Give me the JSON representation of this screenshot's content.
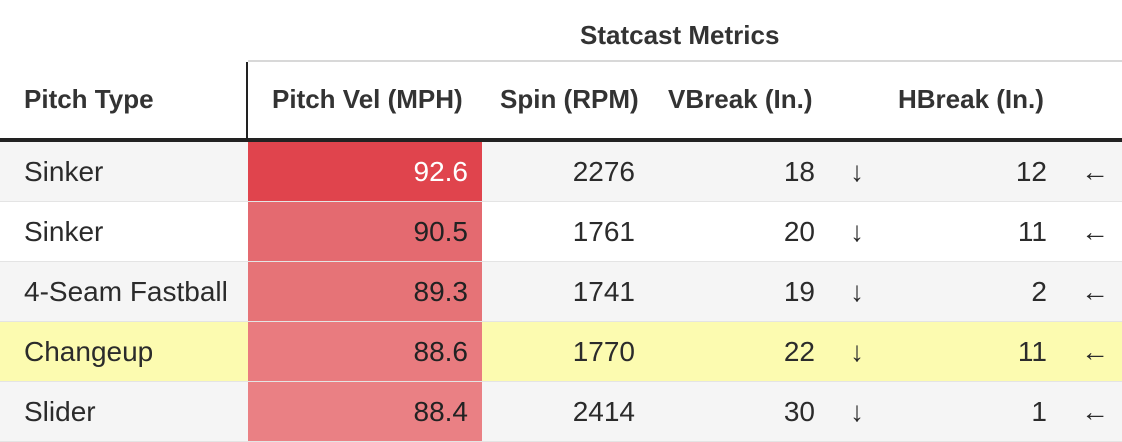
{
  "table": {
    "spanner": "Statcast Metrics",
    "columns": [
      "Pitch Type",
      "Pitch Vel (MPH)",
      "Spin (RPM)",
      "VBreak (In.)",
      "HBreak (In.)"
    ],
    "rows": [
      {
        "pitch_type": "Sinker",
        "velocity": "92.6",
        "spin": "2276",
        "vbreak": "18",
        "vbreak_arrow": "↓",
        "hbreak": "12",
        "hbreak_arrow": "←"
      },
      {
        "pitch_type": "Sinker",
        "velocity": "90.5",
        "spin": "1761",
        "vbreak": "20",
        "vbreak_arrow": "↓",
        "hbreak": "11",
        "hbreak_arrow": "←"
      },
      {
        "pitch_type": "4-Seam Fastball",
        "velocity": "89.3",
        "spin": "1741",
        "vbreak": "19",
        "vbreak_arrow": "↓",
        "hbreak": "2",
        "hbreak_arrow": "←"
      },
      {
        "pitch_type": "Changeup",
        "velocity": "88.6",
        "spin": "1770",
        "vbreak": "22",
        "vbreak_arrow": "↓",
        "hbreak": "11",
        "hbreak_arrow": "←"
      },
      {
        "pitch_type": "Slider",
        "velocity": "88.4",
        "spin": "2414",
        "vbreak": "30",
        "vbreak_arrow": "↓",
        "hbreak": "1",
        "hbreak_arrow": "←"
      }
    ]
  },
  "colors": {
    "row_highlight": "#fcfbb0",
    "row_stripe": "#f5f5f5",
    "row_plain": "#ffffff",
    "velocity_fills": [
      "#e0444d",
      "#e46a70",
      "#e67377",
      "#e97b7f",
      "#ea8084"
    ],
    "velocity_text": [
      "#ffffff",
      "#222222",
      "#222222",
      "#222222",
      "#222222"
    ]
  },
  "chart_data": {
    "type": "table",
    "title": "",
    "spanner": "Statcast Metrics",
    "columns": [
      "Pitch Type",
      "Pitch Vel (MPH)",
      "Spin (RPM)",
      "VBreak (In.)",
      "HBreak (In.)"
    ],
    "x": [
      "Sinker",
      "Sinker",
      "4-Seam Fastball",
      "Changeup",
      "Slider"
    ],
    "series": [
      {
        "name": "Pitch Vel (MPH)",
        "values": [
          92.6,
          90.5,
          89.3,
          88.6,
          88.4
        ]
      },
      {
        "name": "Spin (RPM)",
        "values": [
          2276,
          1761,
          1741,
          1770,
          2414
        ]
      },
      {
        "name": "VBreak (In.)",
        "values": [
          18,
          20,
          19,
          22,
          30
        ]
      },
      {
        "name": "HBreak (In.)",
        "values": [
          12,
          11,
          2,
          11,
          1
        ]
      }
    ],
    "highlighted_row": "Changeup"
  }
}
